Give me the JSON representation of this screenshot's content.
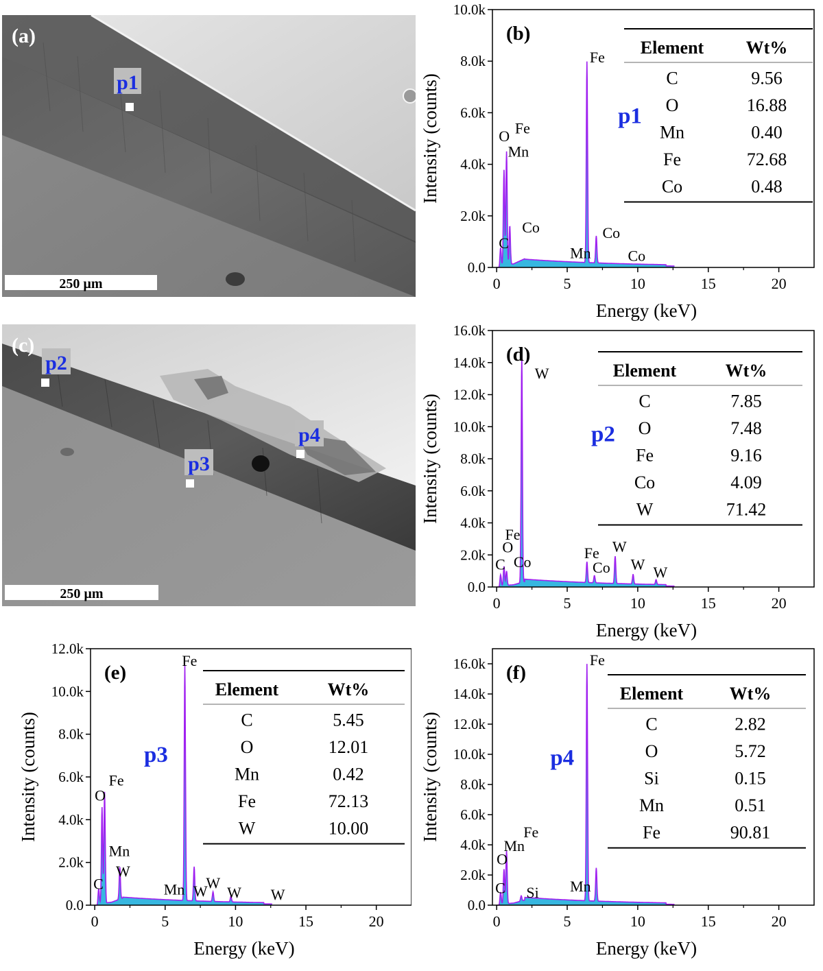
{
  "sem_images": [
    {
      "panel": "(a)",
      "scale_label": "250 µm",
      "points": [
        {
          "label": "p1"
        }
      ]
    },
    {
      "panel": "(c)",
      "scale_label": "250 µm",
      "points": [
        {
          "label": "p2"
        },
        {
          "label": "p3"
        },
        {
          "label": "p4"
        }
      ]
    }
  ],
  "colors": {
    "spectrum_fill": "#37b7e0",
    "spectrum_line": "#a020f0",
    "point_label": "#1b2ee0",
    "label_bg": "#bdbdbd",
    "axis": "#000000"
  },
  "chart_data": [
    {
      "type": "area",
      "panel": "(b)",
      "point": "p1",
      "xlabel": "Energy (keV)",
      "ylabel": "Intensity (counts)",
      "xlim": [
        -0.3,
        22.5
      ],
      "ylim": [
        0,
        10000
      ],
      "xticks": [
        0,
        5,
        10,
        15,
        20
      ],
      "yticks": [
        0,
        2000,
        4000,
        6000,
        8000,
        10000
      ],
      "ytick_labels": [
        "0.0",
        "2.0k",
        "4.0k",
        "6.0k",
        "8.0k",
        "10.0k"
      ],
      "peaks": [
        {
          "x": 0.28,
          "y": 700
        },
        {
          "x": 0.52,
          "y": 3700
        },
        {
          "x": 0.7,
          "y": 4400
        },
        {
          "x": 0.93,
          "y": 1500
        },
        {
          "x": 6.4,
          "y": 7800
        },
        {
          "x": 7.06,
          "y": 1050
        }
      ],
      "peak_labels": [
        {
          "text": "C",
          "x": 0.15,
          "y": 750
        },
        {
          "text": "O",
          "x": 0.15,
          "y": 4900
        },
        {
          "text": "Fe",
          "x": 1.3,
          "y": 5200
        },
        {
          "text": "Mn",
          "x": 0.8,
          "y": 4300
        },
        {
          "text": "Co",
          "x": 1.8,
          "y": 1350
        },
        {
          "text": "Fe",
          "x": 6.6,
          "y": 7950
        },
        {
          "text": "Mn",
          "x": 5.2,
          "y": 360
        },
        {
          "text": "Co",
          "x": 7.5,
          "y": 1150
        },
        {
          "text": "Co",
          "x": 9.3,
          "y": 250
        }
      ],
      "point_label_pos": {
        "x": 8.6,
        "y": 5600
      },
      "table": {
        "headers": [
          "Element",
          "Wt%"
        ],
        "rows": [
          [
            "C",
            "9.56"
          ],
          [
            "O",
            "16.88"
          ],
          [
            "Mn",
            "0.40"
          ],
          [
            "Fe",
            "72.68"
          ],
          [
            "Co",
            "0.48"
          ]
        ]
      }
    },
    {
      "type": "area",
      "panel": "(d)",
      "point": "p2",
      "xlabel": "Energy (keV)",
      "ylabel": "Intensity (counts)",
      "xlim": [
        -0.3,
        22.5
      ],
      "ylim": [
        0,
        16000
      ],
      "xticks": [
        0,
        5,
        10,
        15,
        20
      ],
      "yticks": [
        0,
        2000,
        4000,
        6000,
        8000,
        10000,
        12000,
        14000,
        16000
      ],
      "ytick_labels": [
        "0.0",
        "2.0k",
        "4.0k",
        "6.0k",
        "8.0k",
        "10.0k",
        "12.0k",
        "14.0k",
        "16.0k"
      ],
      "peaks": [
        {
          "x": 0.28,
          "y": 700
        },
        {
          "x": 0.52,
          "y": 1200
        },
        {
          "x": 0.7,
          "y": 900
        },
        {
          "x": 1.78,
          "y": 14200
        },
        {
          "x": 6.4,
          "y": 1300
        },
        {
          "x": 6.93,
          "y": 450
        },
        {
          "x": 8.4,
          "y": 1700
        },
        {
          "x": 9.67,
          "y": 600
        },
        {
          "x": 11.3,
          "y": 300
        }
      ],
      "peak_labels": [
        {
          "text": "W",
          "x": 2.7,
          "y": 13000
        },
        {
          "text": "C",
          "x": -0.1,
          "y": 1100
        },
        {
          "text": "O",
          "x": 0.4,
          "y": 2150
        },
        {
          "text": "Fe",
          "x": 0.6,
          "y": 2950
        },
        {
          "text": "Co",
          "x": 1.2,
          "y": 1250
        },
        {
          "text": "Fe",
          "x": 6.2,
          "y": 1800
        },
        {
          "text": "Co",
          "x": 6.8,
          "y": 900
        },
        {
          "text": "W",
          "x": 8.2,
          "y": 2200
        },
        {
          "text": "W",
          "x": 9.5,
          "y": 1100
        },
        {
          "text": "W",
          "x": 11.1,
          "y": 600
        }
      ],
      "point_label_pos": {
        "x": 6.7,
        "y": 9100
      },
      "table": {
        "headers": [
          "Element",
          "Wt%"
        ],
        "rows": [
          [
            "C",
            "7.85"
          ],
          [
            "O",
            "7.48"
          ],
          [
            "Fe",
            "9.16"
          ],
          [
            "Co",
            "4.09"
          ],
          [
            "W",
            "71.42"
          ]
        ]
      }
    },
    {
      "type": "area",
      "panel": "(e)",
      "point": "p3",
      "xlabel": "Energy (keV)",
      "ylabel": "Intensity (counts)",
      "xlim": [
        -0.3,
        22.5
      ],
      "ylim": [
        0,
        12000
      ],
      "xticks": [
        0,
        5,
        10,
        15,
        20
      ],
      "yticks": [
        0,
        2000,
        4000,
        6000,
        8000,
        10000,
        12000
      ],
      "ytick_labels": [
        "0.0",
        "2.0k",
        "4.0k",
        "6.0k",
        "8.0k",
        "10.0k",
        "12.0k"
      ],
      "peaks": [
        {
          "x": 0.28,
          "y": 700
        },
        {
          "x": 0.52,
          "y": 4500
        },
        {
          "x": 0.7,
          "y": 5200
        },
        {
          "x": 1.78,
          "y": 1500
        },
        {
          "x": 6.4,
          "y": 11000
        },
        {
          "x": 7.06,
          "y": 1600
        },
        {
          "x": 8.4,
          "y": 450
        },
        {
          "x": 9.67,
          "y": 250
        }
      ],
      "peak_labels": [
        {
          "text": "C",
          "x": -0.1,
          "y": 750
        },
        {
          "text": "O",
          "x": 0.0,
          "y": 4900
        },
        {
          "text": "Fe",
          "x": 1.0,
          "y": 5600
        },
        {
          "text": "Mn",
          "x": 1.0,
          "y": 2300
        },
        {
          "text": "W",
          "x": 1.5,
          "y": 1350
        },
        {
          "text": "Fe",
          "x": 6.2,
          "y": 11200
        },
        {
          "text": "Mn",
          "x": 4.9,
          "y": 500
        },
        {
          "text": "W",
          "x": 7.0,
          "y": 420
        },
        {
          "text": "W",
          "x": 7.9,
          "y": 800
        },
        {
          "text": "W",
          "x": 9.4,
          "y": 350
        },
        {
          "text": "W",
          "x": 12.5,
          "y": 250
        }
      ],
      "point_label_pos": {
        "x": 3.5,
        "y": 6700
      },
      "table": {
        "headers": [
          "Element",
          "Wt%"
        ],
        "rows": [
          [
            "C",
            "5.45"
          ],
          [
            "O",
            "12.01"
          ],
          [
            "Mn",
            "0.42"
          ],
          [
            "Fe",
            "72.13"
          ],
          [
            "W",
            "10.00"
          ]
        ]
      }
    },
    {
      "type": "area",
      "panel": "(f)",
      "point": "p4",
      "xlabel": "Energy (keV)",
      "ylabel": "Intensity (counts)",
      "xlim": [
        -0.3,
        22.5
      ],
      "ylim": [
        0,
        17000
      ],
      "xticks": [
        0,
        5,
        10,
        15,
        20
      ],
      "yticks": [
        0,
        2000,
        4000,
        6000,
        8000,
        10000,
        12000,
        14000,
        16000
      ],
      "ytick_labels": [
        "0.0",
        "2.0k",
        "4.0k",
        "6.0k",
        "8.0k",
        "10.0k",
        "12.0k",
        "14.0k",
        "16.0k"
      ],
      "peaks": [
        {
          "x": 0.28,
          "y": 800
        },
        {
          "x": 0.52,
          "y": 2300
        },
        {
          "x": 0.7,
          "y": 3500
        },
        {
          "x": 1.74,
          "y": 350
        },
        {
          "x": 6.4,
          "y": 15700
        },
        {
          "x": 7.06,
          "y": 2200
        }
      ],
      "peak_labels": [
        {
          "text": "C",
          "x": -0.1,
          "y": 800
        },
        {
          "text": "O",
          "x": 0.0,
          "y": 2700
        },
        {
          "text": "Mn",
          "x": 0.5,
          "y": 3600
        },
        {
          "text": "Fe",
          "x": 1.9,
          "y": 4500
        },
        {
          "text": "Si",
          "x": 2.1,
          "y": 500
        },
        {
          "text": "Fe",
          "x": 6.6,
          "y": 15900
        },
        {
          "text": "Mn",
          "x": 5.2,
          "y": 900
        }
      ],
      "point_label_pos": {
        "x": 3.8,
        "y": 9300
      },
      "table": {
        "headers": [
          "Element",
          "Wt%"
        ],
        "rows": [
          [
            "C",
            "2.82"
          ],
          [
            "O",
            "5.72"
          ],
          [
            "Si",
            "0.15"
          ],
          [
            "Mn",
            "0.51"
          ],
          [
            "Fe",
            "90.81"
          ]
        ]
      }
    }
  ]
}
